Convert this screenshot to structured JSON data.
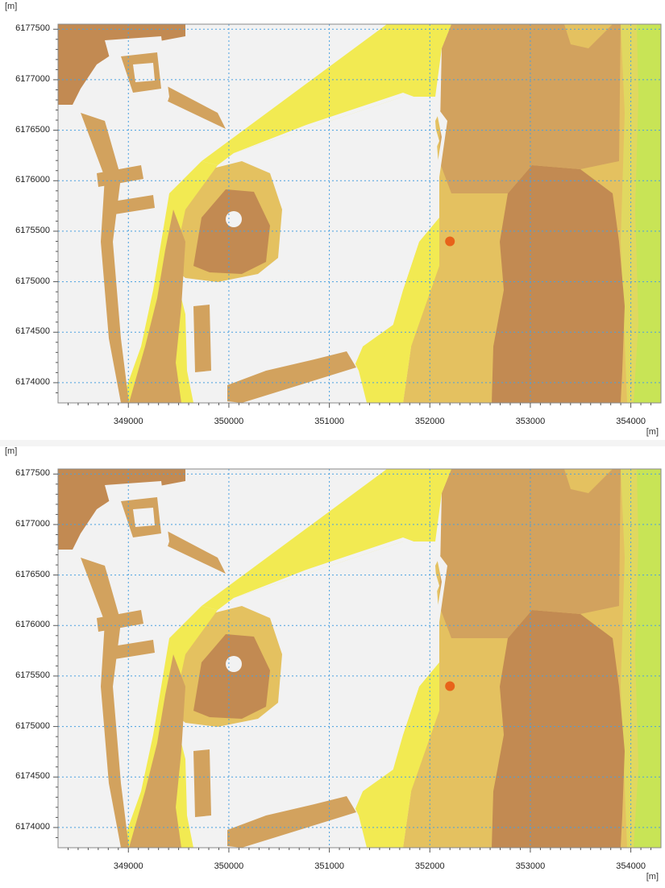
{
  "panels": [
    {
      "unit_y": "[m]",
      "unit_x": "[m]",
      "y_ticks": [
        "6177500",
        "6177000",
        "6176500",
        "6176000",
        "6175500",
        "6175000",
        "6174500",
        "6174000"
      ],
      "x_ticks": [
        "349000",
        "350000",
        "351000",
        "352000",
        "353000",
        "354000"
      ],
      "marker": {
        "x": 352200,
        "y": 6175400,
        "color": "#e8631a"
      }
    },
    {
      "unit_y": "[m]",
      "unit_x": "[m]",
      "y_ticks": [
        "6177500",
        "6177000",
        "6176500",
        "6176000",
        "6175500",
        "6175000",
        "6174500",
        "6174000"
      ],
      "x_ticks": [
        "349000",
        "350000",
        "351000",
        "352000",
        "353000",
        "354000"
      ],
      "marker": {
        "x": 352200,
        "y": 6175400,
        "color": "#e8631a"
      }
    }
  ],
  "colors": {
    "land": "#f2f2f2",
    "depth_shallow": "#f2ea52",
    "depth_light": "#e4c160",
    "depth_mid": "#d2a25e",
    "depth_deep": "#c28a52",
    "offshore_green": "#c8e456",
    "grid": "#4aa0e0"
  },
  "x_range": [
    348300,
    354300
  ],
  "y_range": [
    6173800,
    6177550
  ]
}
